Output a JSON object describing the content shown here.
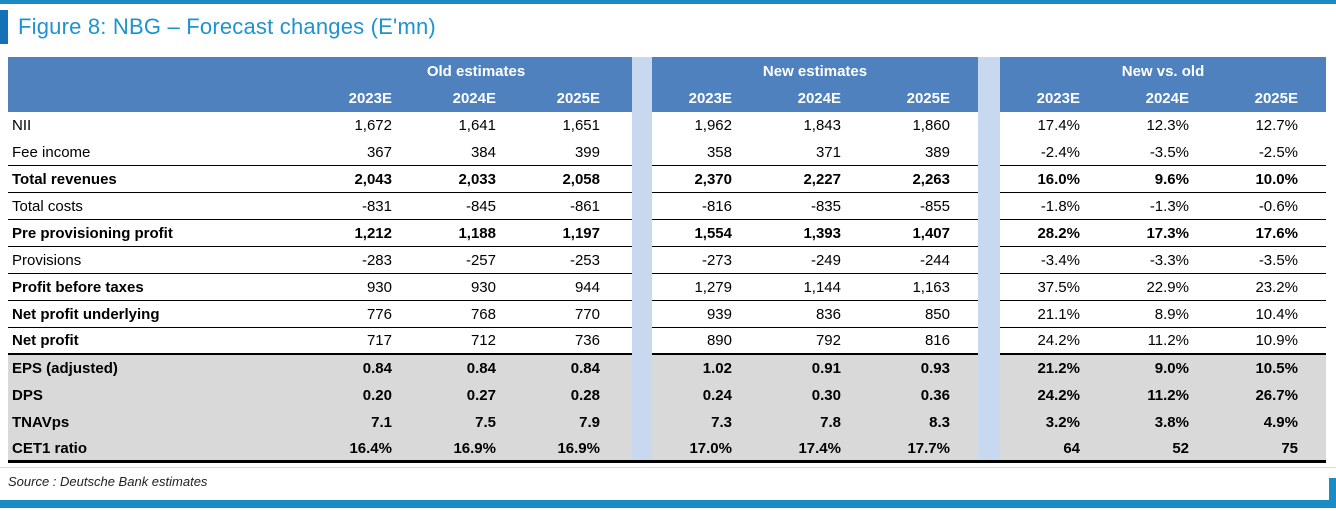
{
  "title": "Figure 8: NBG – Forecast changes (E'mn)",
  "source_note": "Source : Deutsche Bank estimates",
  "colors": {
    "accent_bar": "#1a8bc4",
    "title_accent": "#1471b8",
    "title_text": "#1e93d1",
    "header_blue": "#4e81bd",
    "separator_blue": "#c8d8ef",
    "gray_row": "#d9d9d9"
  },
  "table": {
    "column_groups": [
      {
        "label": "Old estimates",
        "years": [
          "2023E",
          "2024E",
          "2025E"
        ]
      },
      {
        "label": "New estimates",
        "years": [
          "2023E",
          "2024E",
          "2025E"
        ]
      },
      {
        "label": "New vs. old",
        "years": [
          "2023E",
          "2024E",
          "2025E"
        ]
      }
    ],
    "rows": [
      {
        "label": "NII",
        "old": [
          "1,672",
          "1,641",
          "1,651"
        ],
        "new": [
          "1,962",
          "1,843",
          "1,860"
        ],
        "new_vs_old": [
          "17.4%",
          "12.3%",
          "12.7%"
        ],
        "bold_label": false,
        "bold_values": false,
        "gray": false,
        "border_bottom": "none"
      },
      {
        "label": "Fee income",
        "old": [
          "367",
          "384",
          "399"
        ],
        "new": [
          "358",
          "371",
          "389"
        ],
        "new_vs_old": [
          "-2.4%",
          "-3.5%",
          "-2.5%"
        ],
        "bold_label": false,
        "bold_values": false,
        "gray": false,
        "border_bottom": "thin"
      },
      {
        "label": "Total revenues",
        "old": [
          "2,043",
          "2,033",
          "2,058"
        ],
        "new": [
          "2,370",
          "2,227",
          "2,263"
        ],
        "new_vs_old": [
          "16.0%",
          "9.6%",
          "10.0%"
        ],
        "bold_label": true,
        "bold_values": true,
        "gray": false,
        "border_bottom": "thin"
      },
      {
        "label": "Total costs",
        "old": [
          "-831",
          "-845",
          "-861"
        ],
        "new": [
          "-816",
          "-835",
          "-855"
        ],
        "new_vs_old": [
          "-1.8%",
          "-1.3%",
          "-0.6%"
        ],
        "bold_label": false,
        "bold_values": false,
        "gray": false,
        "border_bottom": "thin"
      },
      {
        "label": "Pre provisioning profit",
        "old": [
          "1,212",
          "1,188",
          "1,197"
        ],
        "new": [
          "1,554",
          "1,393",
          "1,407"
        ],
        "new_vs_old": [
          "28.2%",
          "17.3%",
          "17.6%"
        ],
        "bold_label": true,
        "bold_values": true,
        "gray": false,
        "border_bottom": "thin"
      },
      {
        "label": "Provisions",
        "old": [
          "-283",
          "-257",
          "-253"
        ],
        "new": [
          "-273",
          "-249",
          "-244"
        ],
        "new_vs_old": [
          "-3.4%",
          "-3.3%",
          "-3.5%"
        ],
        "bold_label": false,
        "bold_values": false,
        "gray": false,
        "border_bottom": "thin"
      },
      {
        "label": "Profit before taxes",
        "old": [
          "930",
          "930",
          "944"
        ],
        "new": [
          "1,279",
          "1,144",
          "1,163"
        ],
        "new_vs_old": [
          "37.5%",
          "22.9%",
          "23.2%"
        ],
        "bold_label": true,
        "bold_values": false,
        "gray": false,
        "border_bottom": "thin"
      },
      {
        "label": "Net profit underlying",
        "old": [
          "776",
          "768",
          "770"
        ],
        "new": [
          "939",
          "836",
          "850"
        ],
        "new_vs_old": [
          "21.1%",
          "8.9%",
          "10.4%"
        ],
        "bold_label": true,
        "bold_values": false,
        "gray": false,
        "border_bottom": "thin"
      },
      {
        "label": "Net profit",
        "old": [
          "717",
          "712",
          "736"
        ],
        "new": [
          "890",
          "792",
          "816"
        ],
        "new_vs_old": [
          "24.2%",
          "11.2%",
          "10.9%"
        ],
        "bold_label": true,
        "bold_values": false,
        "gray": false,
        "border_bottom": "medium"
      },
      {
        "label": "EPS (adjusted)",
        "old": [
          "0.84",
          "0.84",
          "0.84"
        ],
        "new": [
          "1.02",
          "0.91",
          "0.93"
        ],
        "new_vs_old": [
          "21.2%",
          "9.0%",
          "10.5%"
        ],
        "bold_label": true,
        "bold_values": true,
        "gray": true,
        "border_bottom": "none"
      },
      {
        "label": "DPS",
        "old": [
          "0.20",
          "0.27",
          "0.28"
        ],
        "new": [
          "0.24",
          "0.30",
          "0.36"
        ],
        "new_vs_old": [
          "24.2%",
          "11.2%",
          "26.7%"
        ],
        "bold_label": true,
        "bold_values": true,
        "gray": true,
        "border_bottom": "none"
      },
      {
        "label": "TNAVps",
        "old": [
          "7.1",
          "7.5",
          "7.9"
        ],
        "new": [
          "7.3",
          "7.8",
          "8.3"
        ],
        "new_vs_old": [
          "3.2%",
          "3.8%",
          "4.9%"
        ],
        "bold_label": true,
        "bold_values": true,
        "gray": true,
        "border_bottom": "none"
      },
      {
        "label": "CET1 ratio",
        "old": [
          "16.4%",
          "16.9%",
          "16.9%"
        ],
        "new": [
          "17.0%",
          "17.4%",
          "17.7%"
        ],
        "new_vs_old": [
          "64",
          "52",
          "75"
        ],
        "bold_label": true,
        "bold_values": true,
        "gray": true,
        "border_bottom": "thick"
      }
    ]
  }
}
